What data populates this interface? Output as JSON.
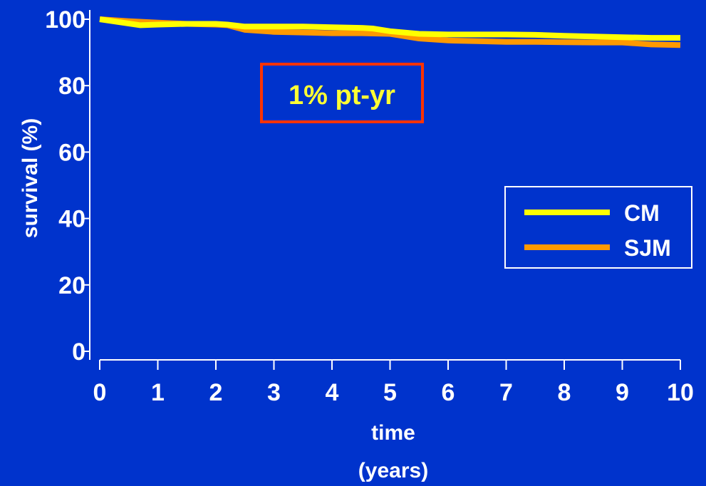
{
  "chart_data": {
    "type": "line",
    "xlabel_line1": "time",
    "xlabel_line2": "(years)",
    "ylabel": "survival (%)",
    "xlim": [
      0,
      10
    ],
    "ylim": [
      0,
      100
    ],
    "xticks": [
      "0",
      "1",
      "2",
      "3",
      "4",
      "5",
      "6",
      "7",
      "8",
      "9",
      "10"
    ],
    "yticks": [
      "0",
      "20",
      "40",
      "60",
      "80",
      "100"
    ],
    "annotation": "1% pt-yr",
    "legend_position": "right",
    "grid": false,
    "series": [
      {
        "name": "CM",
        "color": "#ffff00",
        "x": [
          0,
          0.7,
          1,
          1.5,
          2,
          2.2,
          2.5,
          3,
          3.5,
          4,
          4.5,
          4.7,
          5,
          5.5,
          6,
          6.5,
          7,
          7.5,
          8,
          8.5,
          9,
          9.5,
          10
        ],
        "y": [
          100,
          98.2,
          98.4,
          98.6,
          98.6,
          98.4,
          97.8,
          97.8,
          97.8,
          97.6,
          97.4,
          97.2,
          96.4,
          95.6,
          95.4,
          95.4,
          95.4,
          95.3,
          95,
          94.8,
          94.6,
          94.4,
          94.4
        ]
      },
      {
        "name": "SJM",
        "color": "#ff9900",
        "x": [
          0,
          0.5,
          1,
          1.5,
          2,
          2.2,
          2.5,
          3,
          3.5,
          4,
          4.5,
          5,
          5.5,
          6,
          6.5,
          7,
          7.5,
          8,
          8.5,
          9,
          9.5,
          10
        ],
        "y": [
          100,
          99.4,
          99,
          98.6,
          98.4,
          98.2,
          96.8,
          96.2,
          96,
          95.8,
          95.8,
          95.6,
          94.2,
          93.6,
          93.4,
          93.2,
          93.2,
          93.1,
          93,
          93,
          92.4,
          92.2
        ]
      }
    ]
  }
}
